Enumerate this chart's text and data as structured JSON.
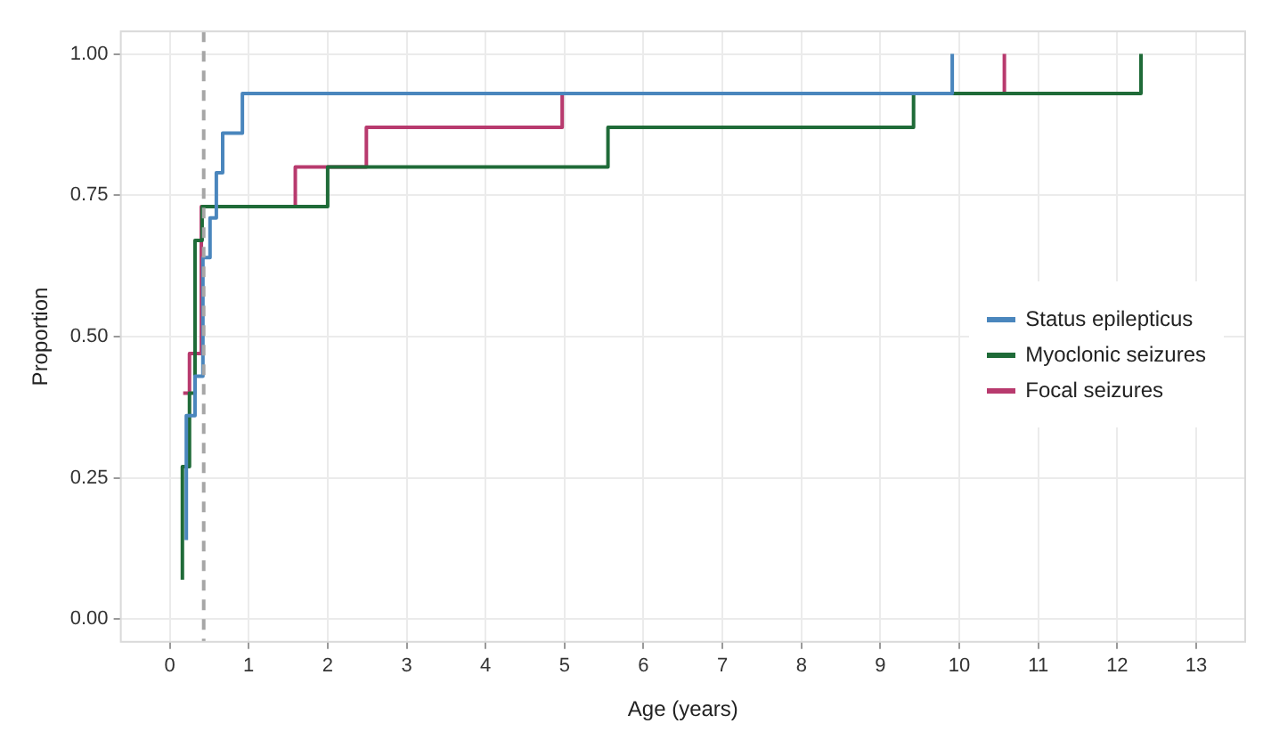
{
  "chart_data": {
    "type": "step",
    "xlabel": "Age (years)",
    "ylabel": "Proportion",
    "xlim": [
      -0.62,
      13.62
    ],
    "xticks": [
      0,
      1,
      2,
      3,
      4,
      5,
      6,
      7,
      8,
      9,
      10,
      11,
      12,
      13
    ],
    "ylim": [
      -0.04,
      1.04
    ],
    "yticks": [
      {
        "value": 0,
        "label": "0.00"
      },
      {
        "value": 0.25,
        "label": "0.25"
      },
      {
        "value": 0.5,
        "label": "0.50"
      },
      {
        "value": 0.75,
        "label": "0.75"
      },
      {
        "value": 1,
        "label": "1.00"
      }
    ],
    "grid": true,
    "legend": "right",
    "marker": "none",
    "ref_lines": [
      {
        "axis": "x",
        "value": 0.43,
        "color": "#a6a6a6",
        "line_style": "dashed"
      }
    ],
    "series": [
      {
        "name": "Status epilepticus",
        "color": "#4a86bd",
        "x": [
          0.21,
          0.21,
          0.32,
          0.42,
          0.51,
          0.59,
          0.67,
          0.92,
          9.91
        ],
        "values": [
          0.14,
          0.36,
          0.43,
          0.64,
          0.71,
          0.79,
          0.86,
          0.93,
          1.0
        ]
      },
      {
        "name": "Myoclonic seizures",
        "color": "#1f6b38",
        "x": [
          0.16,
          0.16,
          0.25,
          0.32,
          0.41,
          2.0,
          5.55,
          9.42,
          12.3
        ],
        "values": [
          0.07,
          0.27,
          0.4,
          0.67,
          0.73,
          0.8,
          0.87,
          0.93,
          1.0
        ]
      },
      {
        "name": "Focal seizures",
        "color": "#b83a6e",
        "x": [
          0.17,
          0.25,
          0.4,
          1.59,
          2.49,
          4.97,
          10.57
        ],
        "values": [
          0.4,
          0.47,
          0.73,
          0.8,
          0.87,
          0.93,
          1.0
        ]
      }
    ]
  }
}
